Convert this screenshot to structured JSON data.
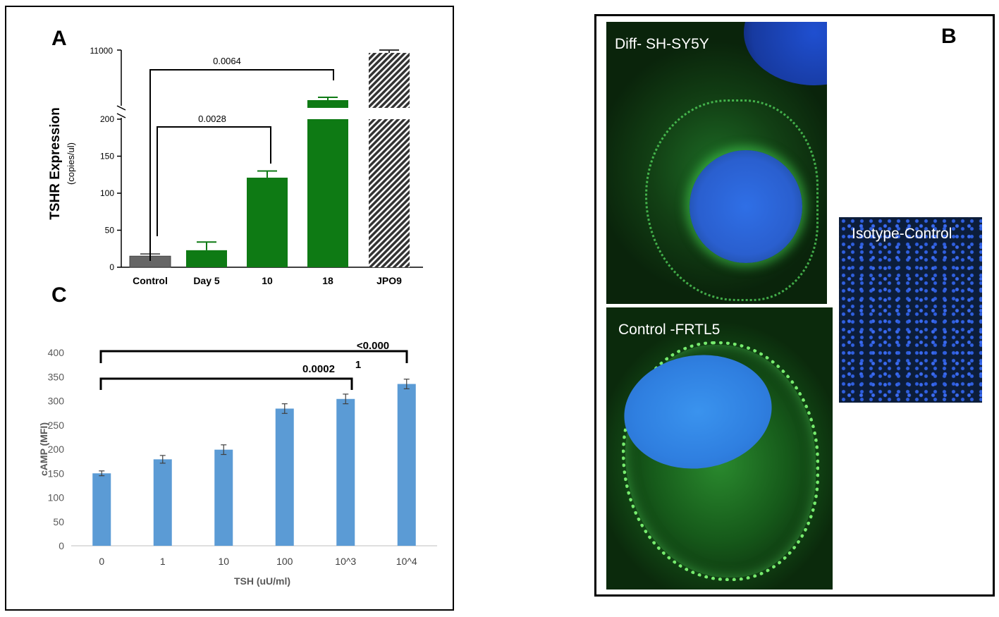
{
  "colors": {
    "panel_a_control": "#666666",
    "panel_a_green": "#0e7a14",
    "panel_a_hatch": "#333333",
    "panel_c_bar": "#5b9bd5",
    "fluor_green": "#3fd24a",
    "nucleus_blue": "#2f6fe6"
  },
  "panel_a": {
    "letter": "A",
    "ylabel": "TSHR Expression",
    "ylabel_unit": "(copies/ul)",
    "ytick_top": "11000",
    "yticks": [
      "0",
      "50",
      "100",
      "150",
      "200"
    ],
    "comparisons": [
      {
        "p": "0.0064",
        "from": "Control",
        "to": "18"
      },
      {
        "p": "0.0028",
        "from": "Control",
        "to": "10"
      }
    ]
  },
  "panel_c": {
    "letter": "C",
    "ylabel": "cAMP (MFI)",
    "xlabel": "TSH (uU/ml)",
    "yticks": [
      "0",
      "50",
      "100",
      "150",
      "200",
      "250",
      "300",
      "350",
      "400"
    ],
    "comparisons": [
      {
        "p_line1": "<0.000",
        "p_line2": "1",
        "from": "0",
        "to": "10^4"
      },
      {
        "p": "0.0002",
        "from": "0",
        "to": "10^3"
      }
    ]
  },
  "panel_b": {
    "letter": "B",
    "images": [
      {
        "label": "Diff- SH-SY5Y",
        "icon": "fluorescence-micrograph"
      },
      {
        "label": "Control -FRTL5",
        "icon": "fluorescence-micrograph"
      },
      {
        "label": "Isotype-Control",
        "icon": "fluorescence-micrograph"
      }
    ]
  },
  "chart_data": [
    {
      "type": "bar",
      "panel": "A",
      "ylabel": "TSHR Expression (copies/ul)",
      "y_axis": "broken",
      "ylim_lower": [
        0,
        200
      ],
      "ylim_upper_tick": 11000,
      "categories": [
        "Control",
        "Day 5",
        "10",
        "18",
        "JPO9"
      ],
      "values": [
        15,
        23,
        121,
        220,
        10900
      ],
      "errors": [
        3,
        11,
        9,
        5,
        60
      ],
      "bar_styles": [
        "solid-gray",
        "solid-green",
        "solid-green",
        "solid-green",
        "hatched"
      ]
    },
    {
      "type": "bar",
      "panel": "C",
      "xlabel": "TSH (uU/ml)",
      "ylabel": "cAMP (MFI)",
      "ylim": [
        0,
        400
      ],
      "categories": [
        "0",
        "1",
        "10",
        "100",
        "10^3",
        "10^4"
      ],
      "values": [
        150,
        179,
        199,
        284,
        304,
        335
      ],
      "errors": [
        5,
        8,
        10,
        10,
        10,
        10
      ]
    }
  ]
}
